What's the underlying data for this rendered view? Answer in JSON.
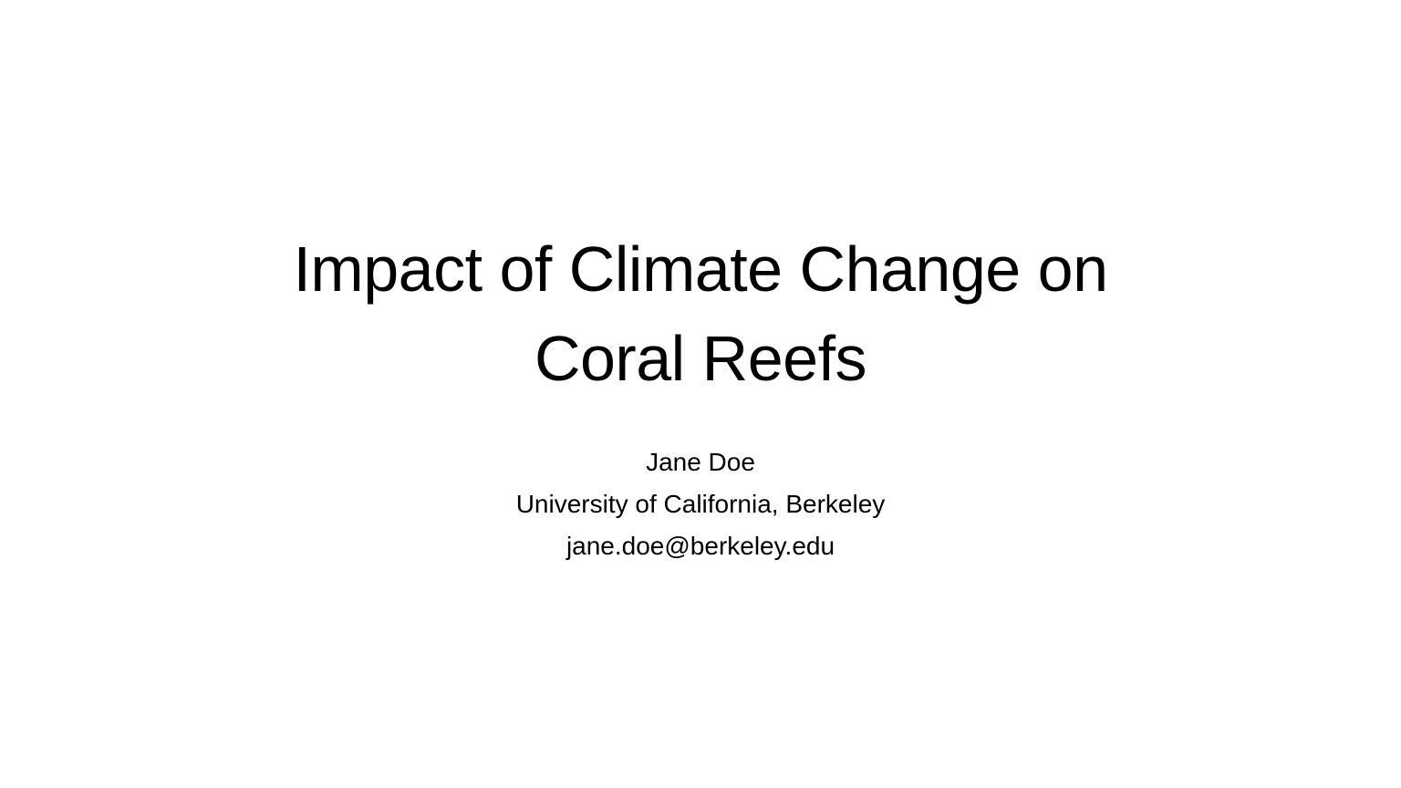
{
  "slide": {
    "title_lines": [
      "Impact of Climate Change on",
      "Coral Reefs"
    ],
    "author": "Jane Doe",
    "affiliation": "University of California, Berkeley",
    "email": "jane.doe@berkeley.edu",
    "colors": {
      "background": "#ffffff",
      "text": "#000000"
    }
  }
}
